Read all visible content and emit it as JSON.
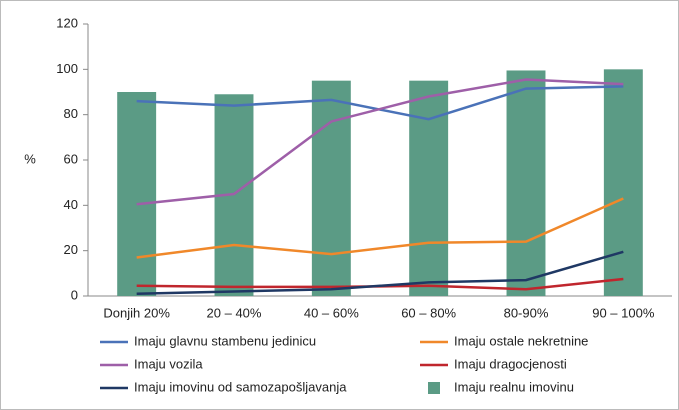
{
  "chart_data": {
    "type": "combo",
    "y_label": "%",
    "categories": [
      "Donjih 20%",
      "20 – 40%",
      "40 – 60%",
      "60 – 80%",
      "80-90%",
      "90 – 100%"
    ],
    "ylim": [
      0,
      120
    ],
    "yticks": [
      0,
      20,
      40,
      60,
      80,
      100,
      120
    ],
    "series": [
      {
        "name": "Imaju glavnu stambenu jedinicu",
        "type": "line",
        "color": "#4a72b8",
        "values": [
          86,
          84,
          86.5,
          78,
          91.5,
          92.5
        ]
      },
      {
        "name": "Imaju ostale nekretnine",
        "type": "line",
        "color": "#f0882a",
        "values": [
          17,
          22.5,
          18.5,
          23.5,
          24,
          43
        ]
      },
      {
        "name": "Imaju vozila",
        "type": "line",
        "color": "#9e5fa8",
        "values": [
          40.5,
          45,
          77,
          88,
          95.5,
          93.5
        ]
      },
      {
        "name": "Imaju dragocjenosti",
        "type": "line",
        "color": "#c0262d",
        "values": [
          4.5,
          4,
          4,
          4.5,
          3,
          7.5
        ]
      },
      {
        "name": "Imaju imovinu od samozapošljavanja",
        "type": "line",
        "color": "#1f3864",
        "values": [
          1,
          2,
          3,
          6,
          7,
          19.5
        ]
      },
      {
        "name": "Imaju realnu imovinu",
        "type": "bar",
        "color": "#5b9b85",
        "values": [
          90,
          89,
          95,
          95,
          99.5,
          100
        ]
      }
    ]
  }
}
